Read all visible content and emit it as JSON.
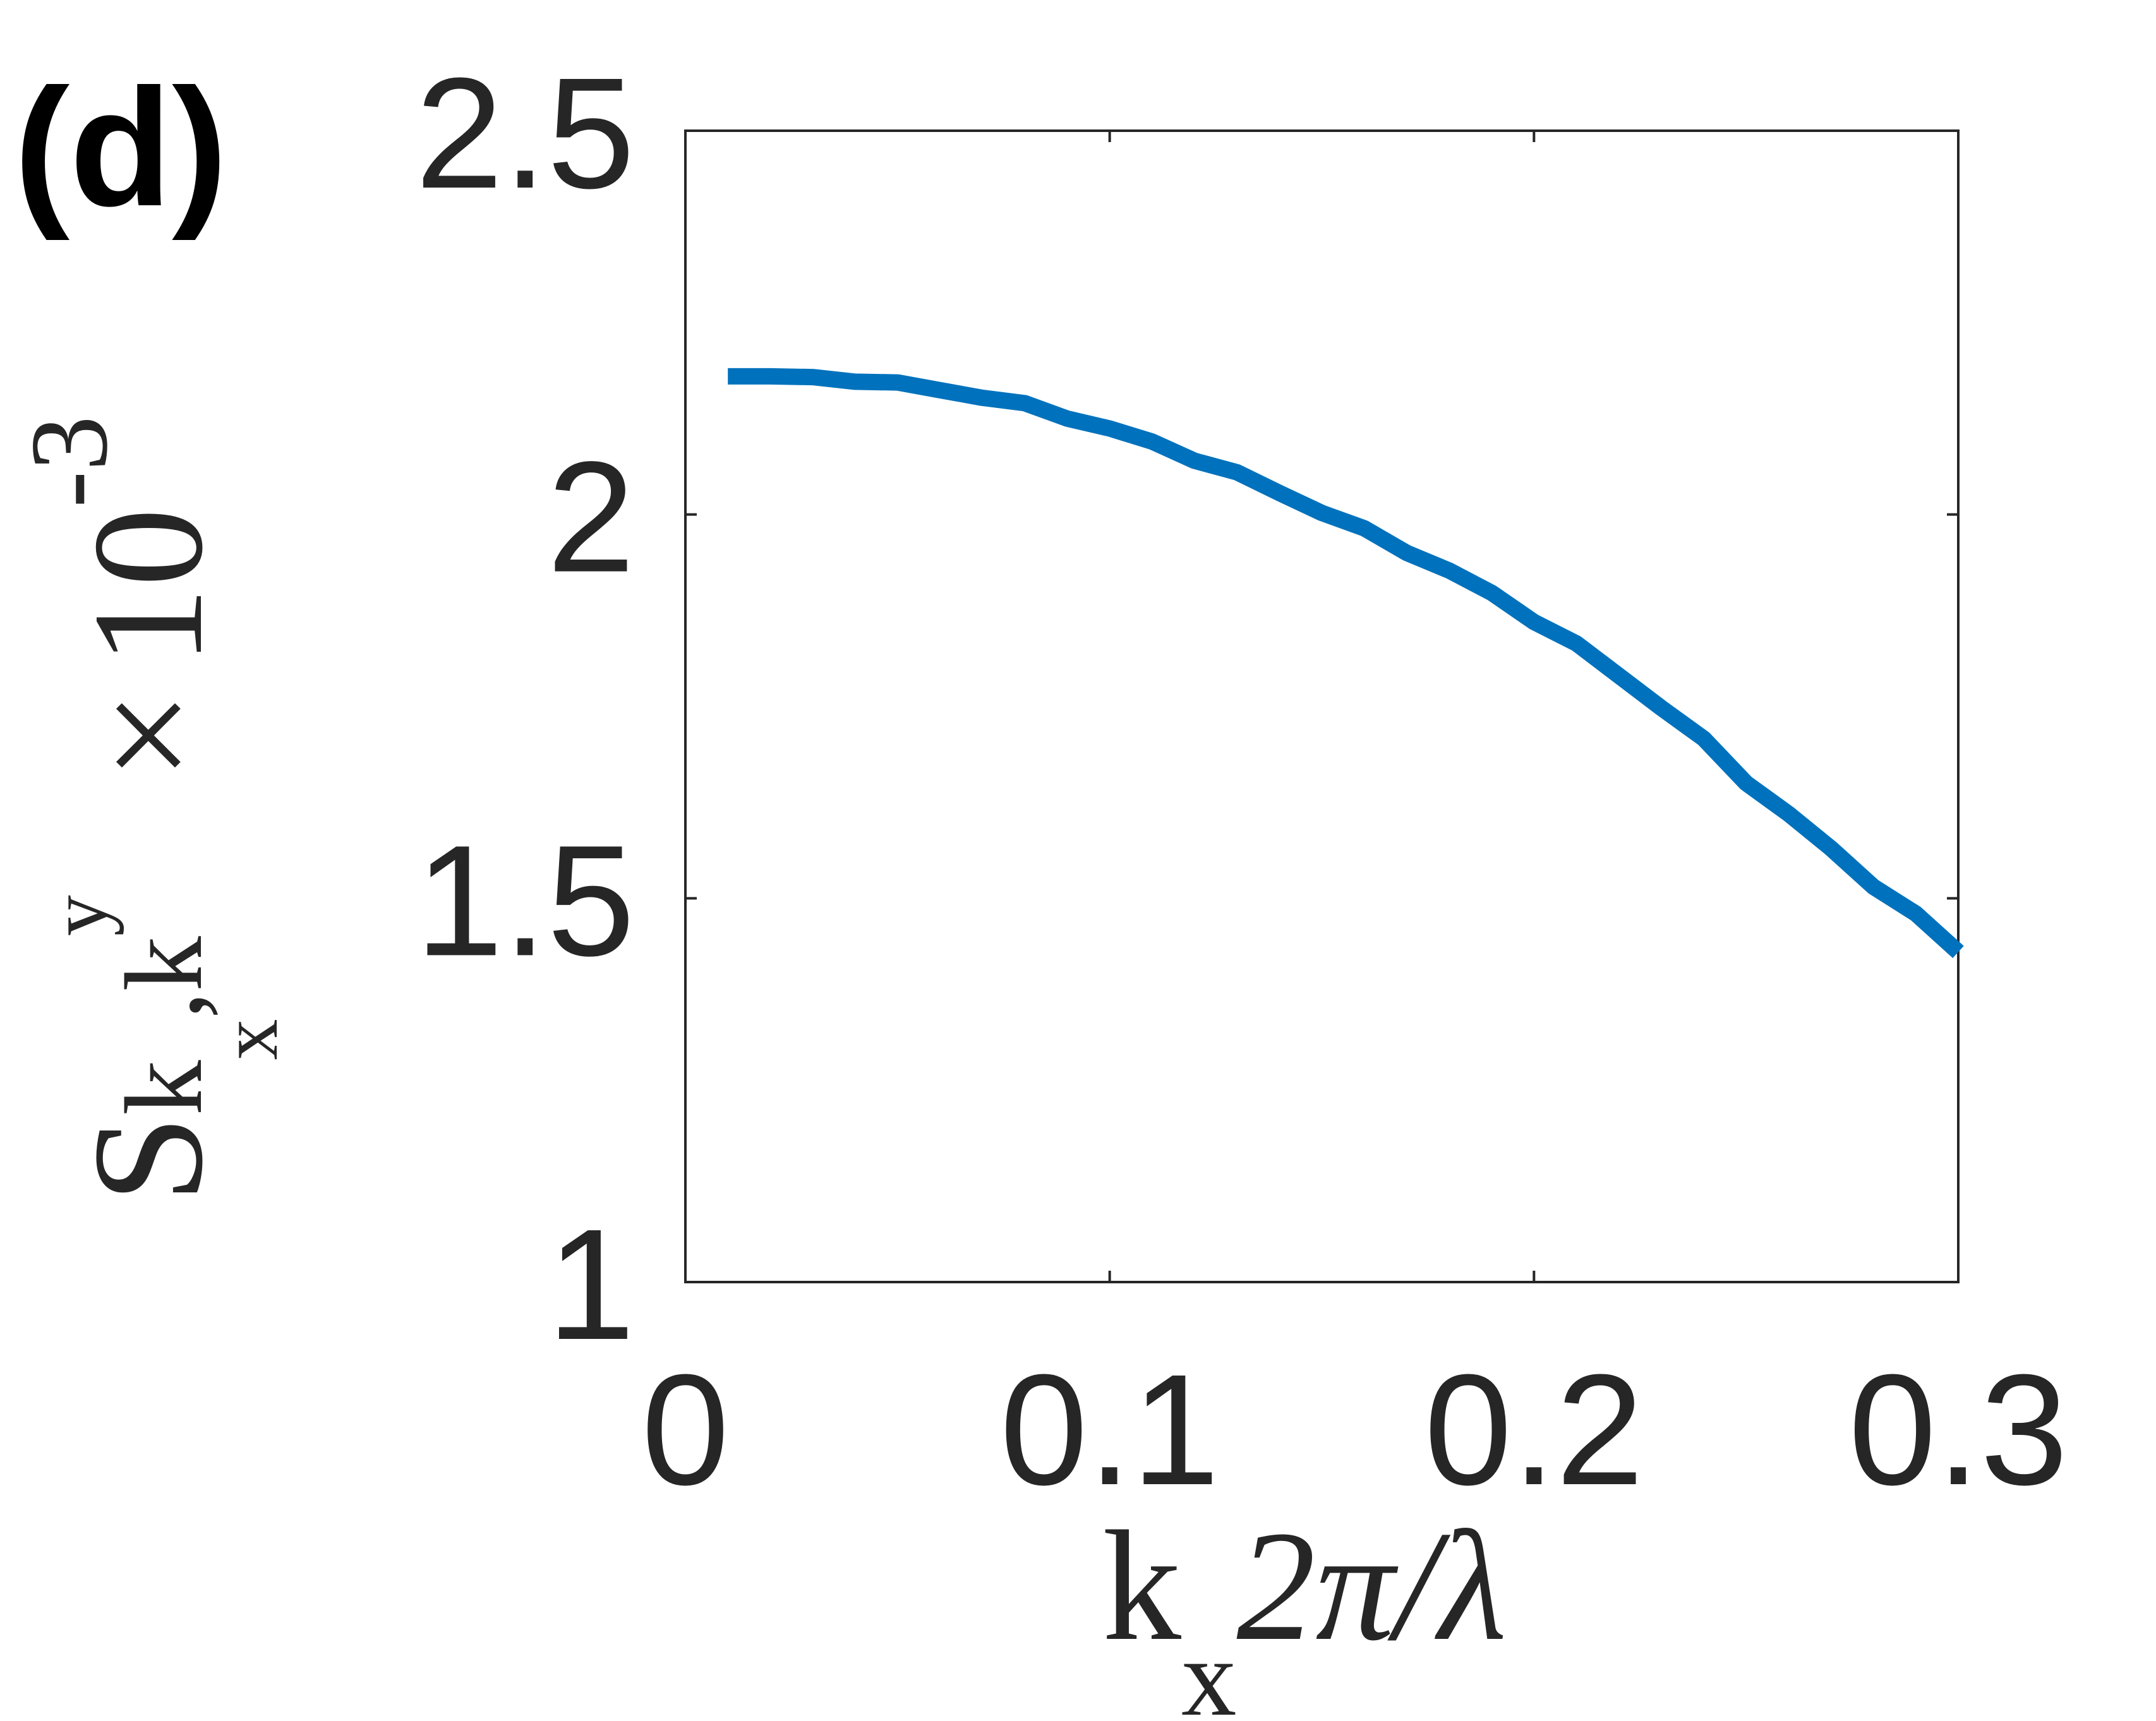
{
  "panel_label": "(d)",
  "chart_data": {
    "type": "line",
    "xlabel": {
      "base": "k",
      "sub": "x",
      "rest": "2π/λ"
    },
    "ylabel": {
      "base": "S",
      "sub_k1": "k",
      "sub_x": "x",
      "comma": ",",
      "sub_k2": "k",
      "sub_y": "y"
    },
    "y_multiplier": {
      "times": "×",
      "base": "10",
      "exponent": "-3"
    },
    "xlim": [
      0,
      0.3
    ],
    "ylim": [
      1,
      2.5
    ],
    "x_ticks": [
      0,
      0.1,
      0.2,
      0.3
    ],
    "x_tick_labels": [
      "0",
      "0.1",
      "0.2",
      "0.3"
    ],
    "y_ticks": [
      1,
      1.5,
      2,
      2.5
    ],
    "y_tick_labels": [
      "1",
      "1.5",
      "2",
      "2.5"
    ],
    "grid": false,
    "series": [
      {
        "color": "#0072BD",
        "x": [
          0.01,
          0.02,
          0.03,
          0.04,
          0.05,
          0.06,
          0.07,
          0.08,
          0.09,
          0.1,
          0.11,
          0.12,
          0.13,
          0.14,
          0.15,
          0.16,
          0.17,
          0.18,
          0.19,
          0.2,
          0.21,
          0.22,
          0.23,
          0.24,
          0.25,
          0.26,
          0.27,
          0.28,
          0.29,
          0.3
        ],
        "y": [
          2.18,
          2.18,
          2.179,
          2.173,
          2.172,
          2.162,
          2.152,
          2.145,
          2.125,
          2.112,
          2.095,
          2.07,
          2.055,
          2.028,
          2.002,
          1.982,
          1.95,
          1.927,
          1.898,
          1.86,
          1.832,
          1.79,
          1.748,
          1.708,
          1.65,
          1.61,
          1.565,
          1.515,
          1.48,
          1.43
        ]
      }
    ]
  }
}
